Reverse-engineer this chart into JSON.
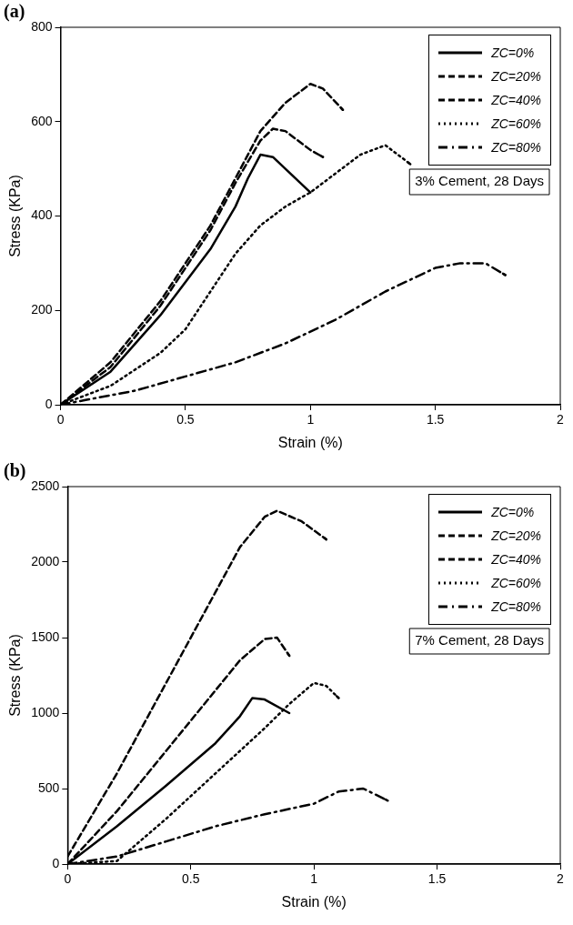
{
  "chart_data": [
    {
      "type": "line",
      "title": "(a)",
      "xlabel": "Strain (%)",
      "ylabel": "Stress (KPa)",
      "xlim": [
        0,
        2
      ],
      "xticks": [
        0,
        0.5,
        1,
        1.5,
        2
      ],
      "ylim": [
        0,
        800
      ],
      "yticks": [
        0,
        200,
        400,
        600,
        800
      ],
      "grid": false,
      "legend": "top right",
      "marker": "none",
      "annotations": [
        "3% Cement, 28 Days"
      ],
      "series": [
        {
          "name": "ZC=0%",
          "color": "#000000",
          "line_style": "solid",
          "x": [
            0,
            0.2,
            0.4,
            0.6,
            0.7,
            0.75,
            0.8,
            0.85,
            0.9,
            1.0
          ],
          "values": [
            0,
            70,
            190,
            330,
            420,
            480,
            530,
            525,
            500,
            450
          ]
        },
        {
          "name": "ZC=20%",
          "color": "#000000",
          "line_style": "dashed",
          "x": [
            0,
            0.2,
            0.4,
            0.6,
            0.7,
            0.8,
            0.85,
            0.9,
            1.0,
            1.05
          ],
          "values": [
            0,
            80,
            210,
            370,
            470,
            560,
            585,
            580,
            540,
            525
          ]
        },
        {
          "name": "ZC=40%",
          "color": "#000000",
          "line_style": "dashed",
          "x": [
            0,
            0.2,
            0.4,
            0.6,
            0.7,
            0.8,
            0.9,
            1.0,
            1.05,
            1.13
          ],
          "values": [
            0,
            90,
            220,
            380,
            480,
            580,
            640,
            680,
            670,
            625
          ]
        },
        {
          "name": "ZC=60%",
          "color": "#000000",
          "line_style": "dotted",
          "x": [
            0,
            0.2,
            0.4,
            0.5,
            0.6,
            0.7,
            0.8,
            0.9,
            1.0,
            1.1,
            1.2,
            1.3,
            1.4
          ],
          "values": [
            0,
            40,
            110,
            160,
            240,
            320,
            380,
            420,
            450,
            490,
            530,
            550,
            510
          ]
        },
        {
          "name": "ZC=80%",
          "color": "#000000",
          "line_style": "dashdot",
          "x": [
            0,
            0.1,
            0.3,
            0.5,
            0.7,
            0.9,
            1.1,
            1.3,
            1.5,
            1.6,
            1.7,
            1.78
          ],
          "values": [
            0,
            10,
            30,
            60,
            90,
            130,
            180,
            240,
            290,
            300,
            300,
            275
          ]
        }
      ]
    },
    {
      "type": "line",
      "title": "(b)",
      "xlabel": "Strain (%)",
      "ylabel": "Stress (KPa)",
      "xlim": [
        0,
        2
      ],
      "xticks": [
        0,
        0.5,
        1,
        1.5,
        2
      ],
      "ylim": [
        0,
        2500
      ],
      "yticks": [
        0,
        500,
        1000,
        1500,
        2000,
        2500
      ],
      "grid": false,
      "legend": "top right",
      "marker": "none",
      "annotations": [
        "7% Cement, 28 Days"
      ],
      "series": [
        {
          "name": "ZC=0%",
          "color": "#000000",
          "line_style": "solid",
          "x": [
            0,
            0.2,
            0.4,
            0.6,
            0.7,
            0.75,
            0.8,
            0.9
          ],
          "values": [
            0,
            250,
            520,
            800,
            980,
            1100,
            1090,
            1000
          ]
        },
        {
          "name": "ZC=20%",
          "color": "#000000",
          "line_style": "dashed",
          "x": [
            0,
            0.2,
            0.4,
            0.6,
            0.7,
            0.8,
            0.85,
            0.9
          ],
          "values": [
            0,
            350,
            750,
            1150,
            1350,
            1490,
            1500,
            1380
          ]
        },
        {
          "name": "ZC=40%",
          "color": "#000000",
          "line_style": "dashed",
          "x": [
            0,
            0.2,
            0.4,
            0.6,
            0.7,
            0.8,
            0.85,
            0.95,
            1.05
          ],
          "values": [
            50,
            600,
            1200,
            1800,
            2100,
            2300,
            2340,
            2270,
            2150
          ]
        },
        {
          "name": "ZC=60%",
          "color": "#000000",
          "line_style": "dotted",
          "x": [
            0,
            0.2,
            0.4,
            0.6,
            0.8,
            0.9,
            1.0,
            1.05,
            1.1
          ],
          "values": [
            0,
            20,
            300,
            600,
            900,
            1060,
            1200,
            1180,
            1100
          ]
        },
        {
          "name": "ZC=80%",
          "color": "#000000",
          "line_style": "dashdot",
          "x": [
            0,
            0.2,
            0.4,
            0.6,
            0.8,
            1.0,
            1.1,
            1.2,
            1.3
          ],
          "values": [
            0,
            50,
            150,
            250,
            330,
            400,
            480,
            500,
            420
          ]
        }
      ]
    }
  ]
}
